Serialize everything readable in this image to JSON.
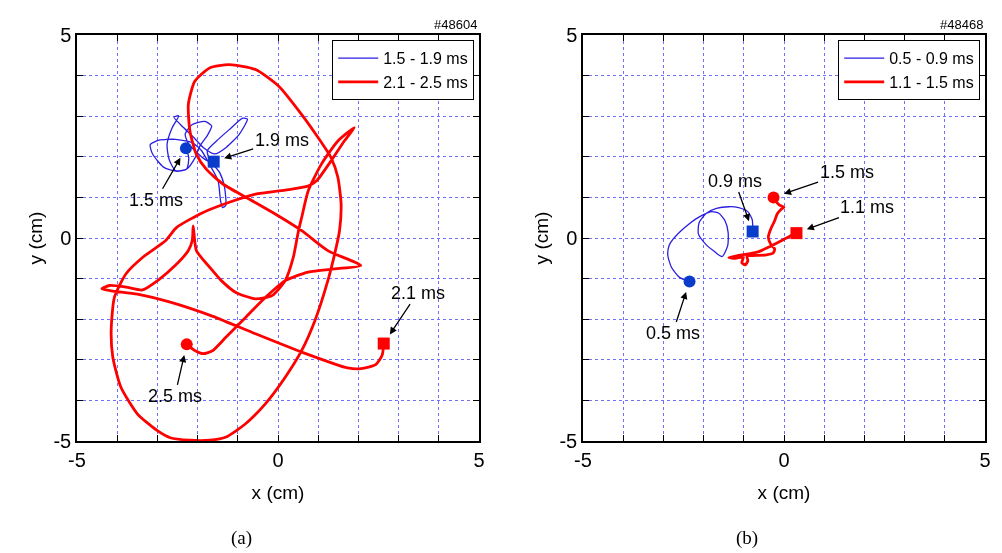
{
  "chart_data": [
    {
      "type": "line",
      "xlabel": "x (cm)",
      "ylabel": "y (cm)",
      "annotations": [
        {
          "text": "1.5 ms",
          "x": -2.29,
          "y": 2.21
        },
        {
          "text": "1.9 ms",
          "x": -1.6,
          "y": 1.88
        },
        {
          "text": "2.1 ms",
          "x": 2.63,
          "y": -2.6
        },
        {
          "text": "2.5 ms",
          "x": -2.27,
          "y": -2.62
        },
        "#48604",
        "(a)"
      ],
      "xlim": [
        -5,
        5
      ],
      "ylim": [
        -5,
        5
      ],
      "xticks": [
        -5,
        {
          "value": -4,
          "label": null
        },
        {
          "value": -3,
          "label": null
        },
        {
          "value": -2,
          "label": null
        },
        {
          "value": -1,
          "label": null
        },
        0,
        {
          "value": 1,
          "label": null
        },
        {
          "value": 2,
          "label": null
        },
        {
          "value": 3,
          "label": null
        },
        {
          "value": 4,
          "label": null
        },
        5
      ],
      "yticks": [
        -5,
        {
          "value": -4,
          "label": null
        },
        {
          "value": -3,
          "label": null
        },
        {
          "value": -2,
          "label": null
        },
        {
          "value": -1,
          "label": null
        },
        0,
        {
          "value": 1,
          "label": null
        },
        {
          "value": 2,
          "label": null
        },
        {
          "value": 3,
          "label": null
        },
        {
          "value": 4,
          "label": null
        },
        5
      ],
      "grid": true,
      "legend": "top right",
      "series": [
        {
          "name": "1.5 - 1.9 ms",
          "color": "#2a1ee0",
          "x": [
            -2.29,
            -2.22,
            -2.27,
            -2.51,
            -2.84,
            -3.12,
            -3.18,
            -2.96,
            -2.55,
            -2.14,
            -1.9,
            -1.73,
            -1.49,
            -1.43,
            -1.38,
            -1.3,
            -1.33,
            -1.45,
            -1.68,
            -1.76,
            -1.53,
            -1.2,
            -0.88,
            -0.76,
            -0.96,
            -1.29,
            -1.57,
            -1.86,
            -2.1,
            -2.35,
            -2.59,
            -2.47,
            -2.63,
            -2.76,
            -2.71,
            -2.55,
            -2.27,
            -2.06,
            -1.94,
            -1.76,
            -1.65,
            -1.82,
            -2.14,
            -2.31,
            -2.22,
            -1.98,
            -1.79,
            -1.6
          ],
          "values": [
            2.21,
            1.98,
            1.7,
            1.64,
            1.74,
            2.07,
            2.3,
            2.41,
            2.43,
            2.35,
            2.15,
            1.86,
            1.41,
            0.92,
            0.75,
            0.8,
            1.25,
            1.61,
            1.9,
            2.15,
            2.39,
            2.68,
            2.95,
            2.93,
            2.56,
            2.23,
            2.07,
            2.23,
            2.48,
            2.72,
            2.98,
            3.01,
            2.72,
            2.31,
            1.94,
            1.66,
            1.7,
            1.98,
            2.27,
            2.52,
            2.76,
            2.87,
            2.79,
            2.56,
            2.31,
            2.07,
            1.92,
            1.88
          ]
        },
        {
          "name": "2.1 - 2.5 ms",
          "color": "#ff0000",
          "x": [
            2.63,
            2.59,
            2.43,
            2.06,
            1.73,
            0.59,
            -0.56,
            -1.62,
            -2.68,
            -3.5,
            -4.15,
            -4.38,
            -4.19,
            -3.78,
            -3.37,
            -2.97,
            -2.56,
            -2.23,
            -2.13,
            -2.11,
            -2.03,
            -1.7,
            -1.41,
            -1.05,
            -0.56,
            -0.15,
            0.18,
            0.38,
            0.51,
            0.59,
            0.75,
            1.08,
            1.49,
            1.9,
            1.65,
            1.32,
            0.96,
            0.75,
            0.18,
            -0.56,
            -1.21,
            -1.86,
            -2.52,
            -2.8,
            -3.37,
            -3.78,
            -4.07,
            -4.15,
            -4.11,
            -3.91,
            -3.5,
            -3.01,
            -2.68,
            -2.2,
            -1.7,
            -1.29,
            -0.8,
            -0.31,
            0.18,
            0.59,
            0.92,
            1.24,
            1.41,
            1.53,
            1.57,
            1.49,
            1.32,
            1.0,
            0.59,
            0.02,
            -0.56,
            -1.21,
            -1.7,
            -2.07,
            -2.23,
            -2.19,
            -2.03,
            -1.78,
            -1.37,
            -0.72,
            -0.07,
            0.59,
            1.24,
            2.06,
            1.41,
            0.75,
            0.18,
            -0.31,
            -0.8,
            -1.29,
            -1.62,
            -1.86,
            -2.07,
            -2.27
          ],
          "values": [
            -2.6,
            -2.89,
            -3.12,
            -3.22,
            -3.2,
            -2.81,
            -2.36,
            -1.93,
            -1.58,
            -1.38,
            -1.3,
            -1.25,
            -1.17,
            -1.21,
            -1.28,
            -1.03,
            -0.68,
            -0.31,
            -0.05,
            0.3,
            -0.31,
            -0.72,
            -1.05,
            -1.34,
            -1.5,
            -1.42,
            -1.05,
            -0.48,
            0.18,
            0.51,
            1.16,
            1.82,
            2.39,
            2.72,
            2.39,
            1.9,
            1.41,
            1.28,
            1.18,
            1.08,
            0.88,
            0.63,
            0.26,
            -0.07,
            -0.48,
            -0.88,
            -1.46,
            -2.28,
            -2.93,
            -3.67,
            -4.33,
            -4.74,
            -4.92,
            -4.98,
            -4.98,
            -4.9,
            -4.57,
            -4.08,
            -3.43,
            -2.77,
            -2.03,
            -1.05,
            -0.39,
            0.18,
            0.83,
            1.49,
            1.98,
            2.47,
            3.04,
            3.74,
            4.15,
            4.27,
            4.19,
            3.86,
            3.29,
            2.63,
            2.06,
            1.69,
            1.33,
            0.96,
            0.59,
            0.18,
            -0.31,
            -0.68,
            -0.76,
            -0.84,
            -1.05,
            -1.46,
            -1.95,
            -2.44,
            -2.77,
            -2.85,
            -2.77,
            -2.62
          ]
        },
        {
          "type": "scatter",
          "marker": "circle",
          "color": "#0a3ccc",
          "x": [
            -2.29
          ],
          "values": [
            2.21
          ]
        },
        {
          "type": "scatter",
          "marker": "square",
          "color": "#0a3ccc",
          "x": [
            -1.6
          ],
          "values": [
            1.88
          ]
        },
        {
          "type": "scatter",
          "marker": "square",
          "color": "#ff0000",
          "x": [
            2.63
          ],
          "values": [
            -2.6
          ]
        },
        {
          "type": "scatter",
          "marker": "circle",
          "color": "#ff0000",
          "x": [
            -2.27
          ],
          "values": [
            -2.62
          ]
        }
      ]
    },
    {
      "type": "line",
      "xlabel": "x (cm)",
      "ylabel": "y (cm)",
      "annotations": [
        {
          "text": "0.5 ms",
          "x": -2.35,
          "y": -1.07
        },
        {
          "text": "0.9 ms",
          "x": -0.78,
          "y": 0.16
        },
        {
          "text": "1.5 ms",
          "x": -0.26,
          "y": 1.0
        },
        {
          "text": "1.1 ms",
          "x": 0.31,
          "y": 0.12
        },
        "#48468",
        "(b)"
      ],
      "xlim": [
        -5,
        5
      ],
      "ylim": [
        -5,
        5
      ],
      "xticks": [
        -5,
        {
          "value": -4,
          "label": null
        },
        {
          "value": -3,
          "label": null
        },
        {
          "value": -2,
          "label": null
        },
        {
          "value": -1,
          "label": null
        },
        0,
        {
          "value": 1,
          "label": null
        },
        {
          "value": 2,
          "label": null
        },
        {
          "value": 3,
          "label": null
        },
        {
          "value": 4,
          "label": null
        },
        5
      ],
      "yticks": [
        -5,
        {
          "value": -4,
          "label": null
        },
        {
          "value": -3,
          "label": null
        },
        {
          "value": -2,
          "label": null
        },
        {
          "value": -1,
          "label": null
        },
        0,
        {
          "value": 1,
          "label": null
        },
        {
          "value": 2,
          "label": null
        },
        {
          "value": 3,
          "label": null
        },
        {
          "value": 4,
          "label": null
        },
        5
      ],
      "grid": true,
      "legend": "top right",
      "series": [
        {
          "name": "0.5 - 0.9 ms",
          "color": "#2a1ee0",
          "x": [
            -2.35,
            -2.6,
            -2.8,
            -2.89,
            -2.86,
            -2.76,
            -2.56,
            -2.37,
            -2.19,
            -1.99,
            -1.8,
            -1.62,
            -1.47,
            -1.39,
            -1.4,
            -1.54,
            -1.72,
            -1.95,
            -2.13,
            -2.11,
            -1.93,
            -1.68,
            -1.37,
            -1.13,
            -0.9,
            -0.79,
            -0.78
          ],
          "values": [
            -1.07,
            -0.97,
            -0.72,
            -0.43,
            -0.19,
            -0.03,
            0.18,
            0.34,
            0.47,
            0.58,
            0.65,
            0.61,
            0.43,
            0.14,
            -0.19,
            -0.46,
            -0.34,
            -0.15,
            0.1,
            0.38,
            0.61,
            0.73,
            0.77,
            0.75,
            0.65,
            0.45,
            0.16
          ]
        },
        {
          "name": "1.1 - 1.5 ms",
          "color": "#ff0000",
          "x": [
            0.31,
            0.1,
            -0.15,
            -0.39,
            -0.64,
            -0.88,
            -1.13,
            -1.37,
            -1.21,
            -1.01,
            -1.05,
            -0.96,
            -0.9,
            -0.92,
            -0.72,
            -0.47,
            -0.27,
            -0.23,
            -0.33,
            -0.39,
            -0.33,
            -0.23,
            -0.17,
            -0.07,
            0.0,
            -0.11,
            -0.19,
            -0.26
          ],
          "values": [
            0.12,
            0.02,
            -0.11,
            -0.23,
            -0.34,
            -0.39,
            -0.43,
            -0.48,
            -0.5,
            -0.47,
            -0.61,
            -0.66,
            -0.56,
            -0.45,
            -0.43,
            -0.42,
            -0.37,
            -0.27,
            -0.15,
            0.02,
            0.22,
            0.43,
            0.59,
            0.71,
            0.76,
            0.81,
            0.89,
            1.0
          ]
        },
        {
          "type": "scatter",
          "marker": "circle",
          "color": "#0a3ccc",
          "x": [
            -2.35
          ],
          "values": [
            -1.07
          ]
        },
        {
          "type": "scatter",
          "marker": "square",
          "color": "#0a3ccc",
          "x": [
            -0.78
          ],
          "values": [
            0.16
          ]
        },
        {
          "type": "scatter",
          "marker": "square",
          "color": "#ff0000",
          "x": [
            0.31
          ],
          "values": [
            0.12
          ]
        },
        {
          "type": "scatter",
          "marker": "circle",
          "color": "#ff0000",
          "x": [
            -0.26
          ],
          "values": [
            1.0
          ]
        }
      ]
    }
  ]
}
